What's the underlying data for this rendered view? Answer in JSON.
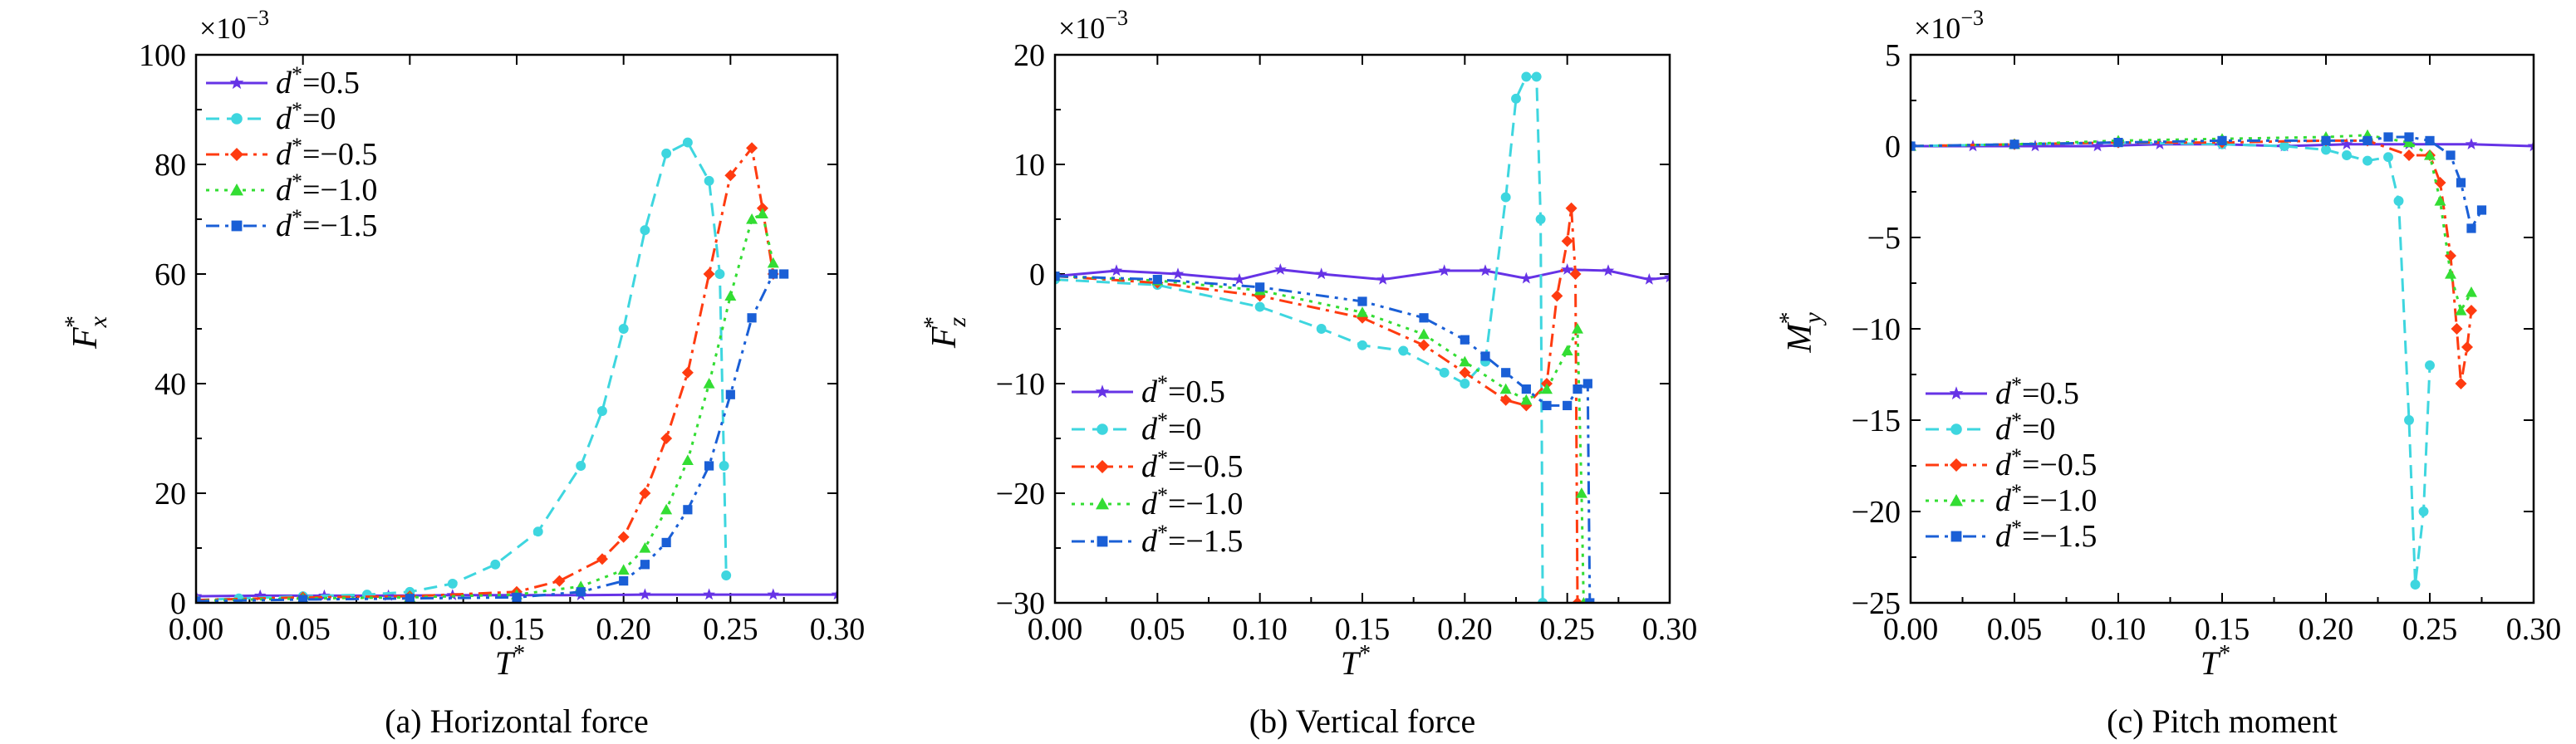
{
  "series_styles": [
    {
      "color": "#6633e6",
      "dash": "",
      "marker": "star"
    },
    {
      "color": "#3ed6df",
      "dash": "16,9",
      "marker": "circle"
    },
    {
      "color": "#ff3b10",
      "dash": "16,7,4,7",
      "marker": "diamond"
    },
    {
      "color": "#33dd33",
      "dash": "4,7",
      "marker": "triangle"
    },
    {
      "color": "#1a5fd6",
      "dash": "16,7,4,7,4,7",
      "marker": "square"
    }
  ],
  "legend_labels": [
    "=0.5",
    "=0",
    "=−0.5",
    "=−1.0",
    "=−1.5"
  ],
  "legend_symbol": "d",
  "chart_data": [
    {
      "type": "line",
      "caption": "(a) Horizontal force",
      "xlabel": "T",
      "ylabel": "F",
      "ylabel_sub": "x",
      "exponent": "×10",
      "exponent_power": "−3",
      "xlim": [
        0,
        0.3
      ],
      "ylim": [
        0,
        100
      ],
      "xticks": [
        "0.00",
        "0.05",
        "0.10",
        "0.15",
        "0.20",
        "0.25",
        "0.30"
      ],
      "yticks": [
        "0",
        "20",
        "40",
        "60",
        "80",
        "100"
      ],
      "legend_position": "top-left",
      "series": [
        {
          "x": [
            0,
            0.03,
            0.06,
            0.09,
            0.12,
            0.15,
            0.18,
            0.21,
            0.24,
            0.27,
            0.3
          ],
          "y": [
            1.2,
            1.3,
            1.3,
            1.3,
            1.4,
            1.4,
            1.4,
            1.5,
            1.5,
            1.5,
            1.5
          ]
        },
        {
          "x": [
            0,
            0.02,
            0.05,
            0.08,
            0.1,
            0.12,
            0.14,
            0.16,
            0.18,
            0.19,
            0.2,
            0.21,
            0.22,
            0.23,
            0.24,
            0.245,
            0.247,
            0.248
          ],
          "y": [
            0.5,
            0.8,
            1.2,
            1.5,
            2,
            3.5,
            7,
            13,
            25,
            35,
            50,
            68,
            82,
            84,
            77,
            60,
            25,
            5
          ]
        },
        {
          "x": [
            0,
            0.05,
            0.1,
            0.15,
            0.17,
            0.19,
            0.2,
            0.21,
            0.22,
            0.23,
            0.24,
            0.25,
            0.26,
            0.265,
            0.27
          ],
          "y": [
            0.5,
            1,
            1.2,
            2,
            4,
            8,
            12,
            20,
            30,
            42,
            60,
            78,
            83,
            72,
            60
          ]
        },
        {
          "x": [
            0,
            0.05,
            0.1,
            0.15,
            0.18,
            0.2,
            0.21,
            0.22,
            0.23,
            0.24,
            0.25,
            0.26,
            0.265,
            0.27
          ],
          "y": [
            0.4,
            0.8,
            1,
            1.5,
            3,
            6,
            10,
            17,
            26,
            40,
            56,
            70,
            71,
            62
          ]
        },
        {
          "x": [
            0,
            0.05,
            0.1,
            0.15,
            0.18,
            0.2,
            0.21,
            0.22,
            0.23,
            0.24,
            0.25,
            0.26,
            0.27,
            0.275
          ],
          "y": [
            0.3,
            0.6,
            0.8,
            1,
            2,
            4,
            7,
            11,
            17,
            25,
            38,
            52,
            60,
            60
          ]
        }
      ]
    },
    {
      "type": "line",
      "caption": "(b) Vertical force",
      "xlabel": "T",
      "ylabel": "F",
      "ylabel_sub": "z",
      "exponent": "×10",
      "exponent_power": "−3",
      "xlim": [
        0,
        0.3
      ],
      "ylim": [
        -30,
        20
      ],
      "xticks": [
        "0.00",
        "0.05",
        "0.10",
        "0.15",
        "0.20",
        "0.25",
        "0.30"
      ],
      "yticks": [
        "−30",
        "−20",
        "−10",
        "0",
        "10",
        "20"
      ],
      "legend_position": "bottom-left",
      "series": [
        {
          "x": [
            0,
            0.03,
            0.06,
            0.09,
            0.11,
            0.13,
            0.16,
            0.19,
            0.21,
            0.23,
            0.25,
            0.27,
            0.29,
            0.3
          ],
          "y": [
            -0.2,
            0.3,
            0,
            -0.5,
            0.4,
            0,
            -0.5,
            0.3,
            0.3,
            -0.4,
            0.4,
            0.3,
            -0.5,
            -0.3
          ]
        },
        {
          "x": [
            0,
            0.05,
            0.1,
            0.13,
            0.15,
            0.17,
            0.19,
            0.2,
            0.21,
            0.22,
            0.225,
            0.23,
            0.235,
            0.237,
            0.238
          ],
          "y": [
            -0.5,
            -1,
            -3,
            -5,
            -6.5,
            -7,
            -9,
            -10,
            -8,
            7,
            16,
            18,
            18,
            5,
            -30
          ]
        },
        {
          "x": [
            0,
            0.05,
            0.1,
            0.15,
            0.18,
            0.2,
            0.22,
            0.23,
            0.24,
            0.245,
            0.25,
            0.252,
            0.254,
            0.255
          ],
          "y": [
            -0.2,
            -0.8,
            -2,
            -4,
            -6.5,
            -9,
            -11.5,
            -12,
            -10,
            -2,
            3,
            6,
            0,
            -30
          ]
        },
        {
          "x": [
            0,
            0.05,
            0.1,
            0.15,
            0.18,
            0.2,
            0.22,
            0.23,
            0.24,
            0.25,
            0.255,
            0.257,
            0.258
          ],
          "y": [
            -0.2,
            -0.6,
            -1.5,
            -3.5,
            -5.5,
            -8,
            -10.5,
            -11.5,
            -10.5,
            -7,
            -5,
            -20,
            -30
          ]
        },
        {
          "x": [
            0,
            0.05,
            0.1,
            0.15,
            0.18,
            0.2,
            0.21,
            0.22,
            0.23,
            0.24,
            0.25,
            0.255,
            0.26,
            0.261
          ],
          "y": [
            -0.2,
            -0.5,
            -1.2,
            -2.5,
            -4,
            -6,
            -7.5,
            -9,
            -10.5,
            -12,
            -12,
            -10.5,
            -10,
            -30
          ]
        }
      ]
    },
    {
      "type": "line",
      "caption": "(c) Pitch moment",
      "xlabel": "T",
      "ylabel": "M",
      "ylabel_sub": "y",
      "exponent": "×10",
      "exponent_power": "−3",
      "xlim": [
        0,
        0.3
      ],
      "ylim": [
        -25,
        5
      ],
      "xticks": [
        "0.00",
        "0.05",
        "0.10",
        "0.15",
        "0.20",
        "0.25",
        "0.30"
      ],
      "yticks": [
        "−25",
        "−20",
        "−15",
        "−10",
        "−5",
        "0",
        "5"
      ],
      "legend_position": "bottom-left",
      "series": [
        {
          "x": [
            0,
            0.03,
            0.06,
            0.09,
            0.12,
            0.15,
            0.18,
            0.21,
            0.24,
            0.27,
            0.3
          ],
          "y": [
            0,
            0,
            0,
            0,
            0.1,
            0.1,
            0,
            0.1,
            0.1,
            0.1,
            0
          ]
        },
        {
          "x": [
            0,
            0.05,
            0.1,
            0.15,
            0.18,
            0.2,
            0.21,
            0.22,
            0.23,
            0.235,
            0.24,
            0.243,
            0.247,
            0.25
          ],
          "y": [
            0,
            0.1,
            0.2,
            0.1,
            0,
            -0.2,
            -0.5,
            -0.8,
            -0.6,
            -3,
            -15,
            -24,
            -20,
            -12
          ]
        },
        {
          "x": [
            0,
            0.05,
            0.1,
            0.15,
            0.2,
            0.22,
            0.24,
            0.25,
            0.255,
            0.26,
            0.263,
            0.265,
            0.268,
            0.27
          ],
          "y": [
            0,
            0.1,
            0.2,
            0.2,
            0.3,
            0.3,
            -0.5,
            -0.5,
            -2,
            -6,
            -10,
            -13,
            -11,
            -9
          ]
        },
        {
          "x": [
            0,
            0.05,
            0.1,
            0.15,
            0.2,
            0.22,
            0.24,
            0.25,
            0.255,
            0.26,
            0.265,
            0.27
          ],
          "y": [
            0,
            0.1,
            0.3,
            0.4,
            0.5,
            0.6,
            0.2,
            -0.5,
            -3,
            -7,
            -9,
            -8
          ]
        },
        {
          "x": [
            0,
            0.05,
            0.1,
            0.15,
            0.2,
            0.22,
            0.23,
            0.24,
            0.25,
            0.26,
            0.265,
            0.27,
            0.275
          ],
          "y": [
            0,
            0.1,
            0.2,
            0.3,
            0.3,
            0.3,
            0.5,
            0.5,
            0.3,
            -0.5,
            -2,
            -4.5,
            -3.5
          ]
        }
      ]
    }
  ]
}
